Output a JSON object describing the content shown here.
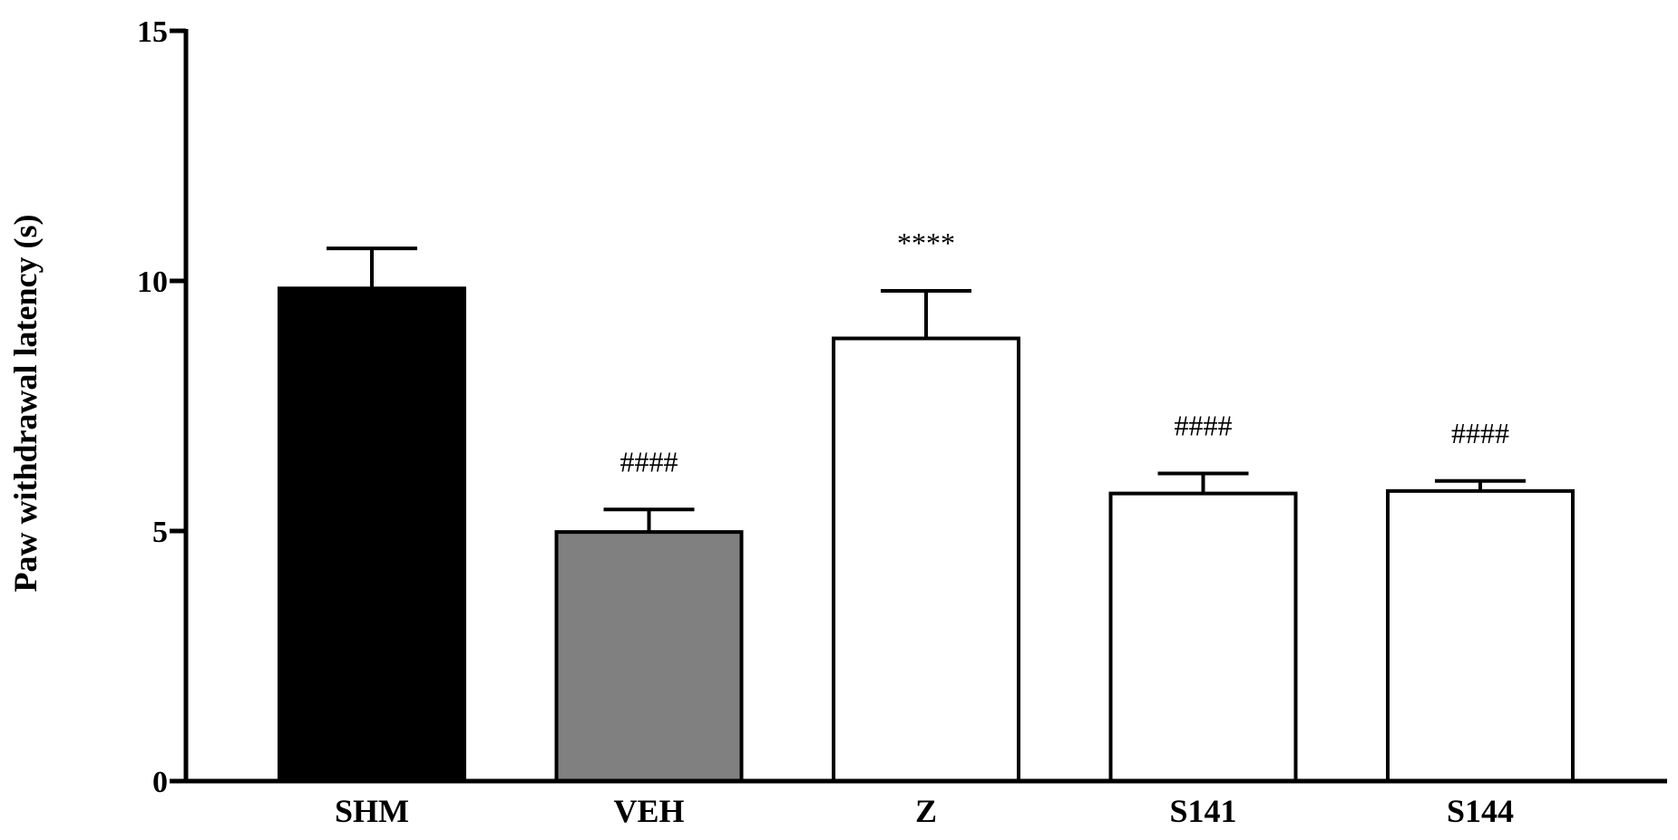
{
  "chart_data": {
    "type": "bar",
    "title": "",
    "xlabel": "",
    "ylabel": "Paw withdrawal latency (s)",
    "ylim": [
      0,
      15
    ],
    "yticks": [
      0,
      5,
      10,
      15
    ],
    "ytick_labels": [
      "0",
      "5",
      "10",
      "15"
    ],
    "categories": [
      "SHM",
      "VEH",
      "Z",
      "S141",
      "S144"
    ],
    "values": [
      9.85,
      4.98,
      8.85,
      5.75,
      5.8
    ],
    "errors": [
      0.8,
      0.45,
      0.95,
      0.4,
      0.2
    ],
    "annotations": [
      "",
      "####",
      "****",
      "####",
      "####"
    ],
    "bar_fills": [
      "#000000",
      "#808080",
      "#ffffff",
      "#ffffff",
      "#ffffff"
    ],
    "grid": false,
    "legend": "none"
  }
}
